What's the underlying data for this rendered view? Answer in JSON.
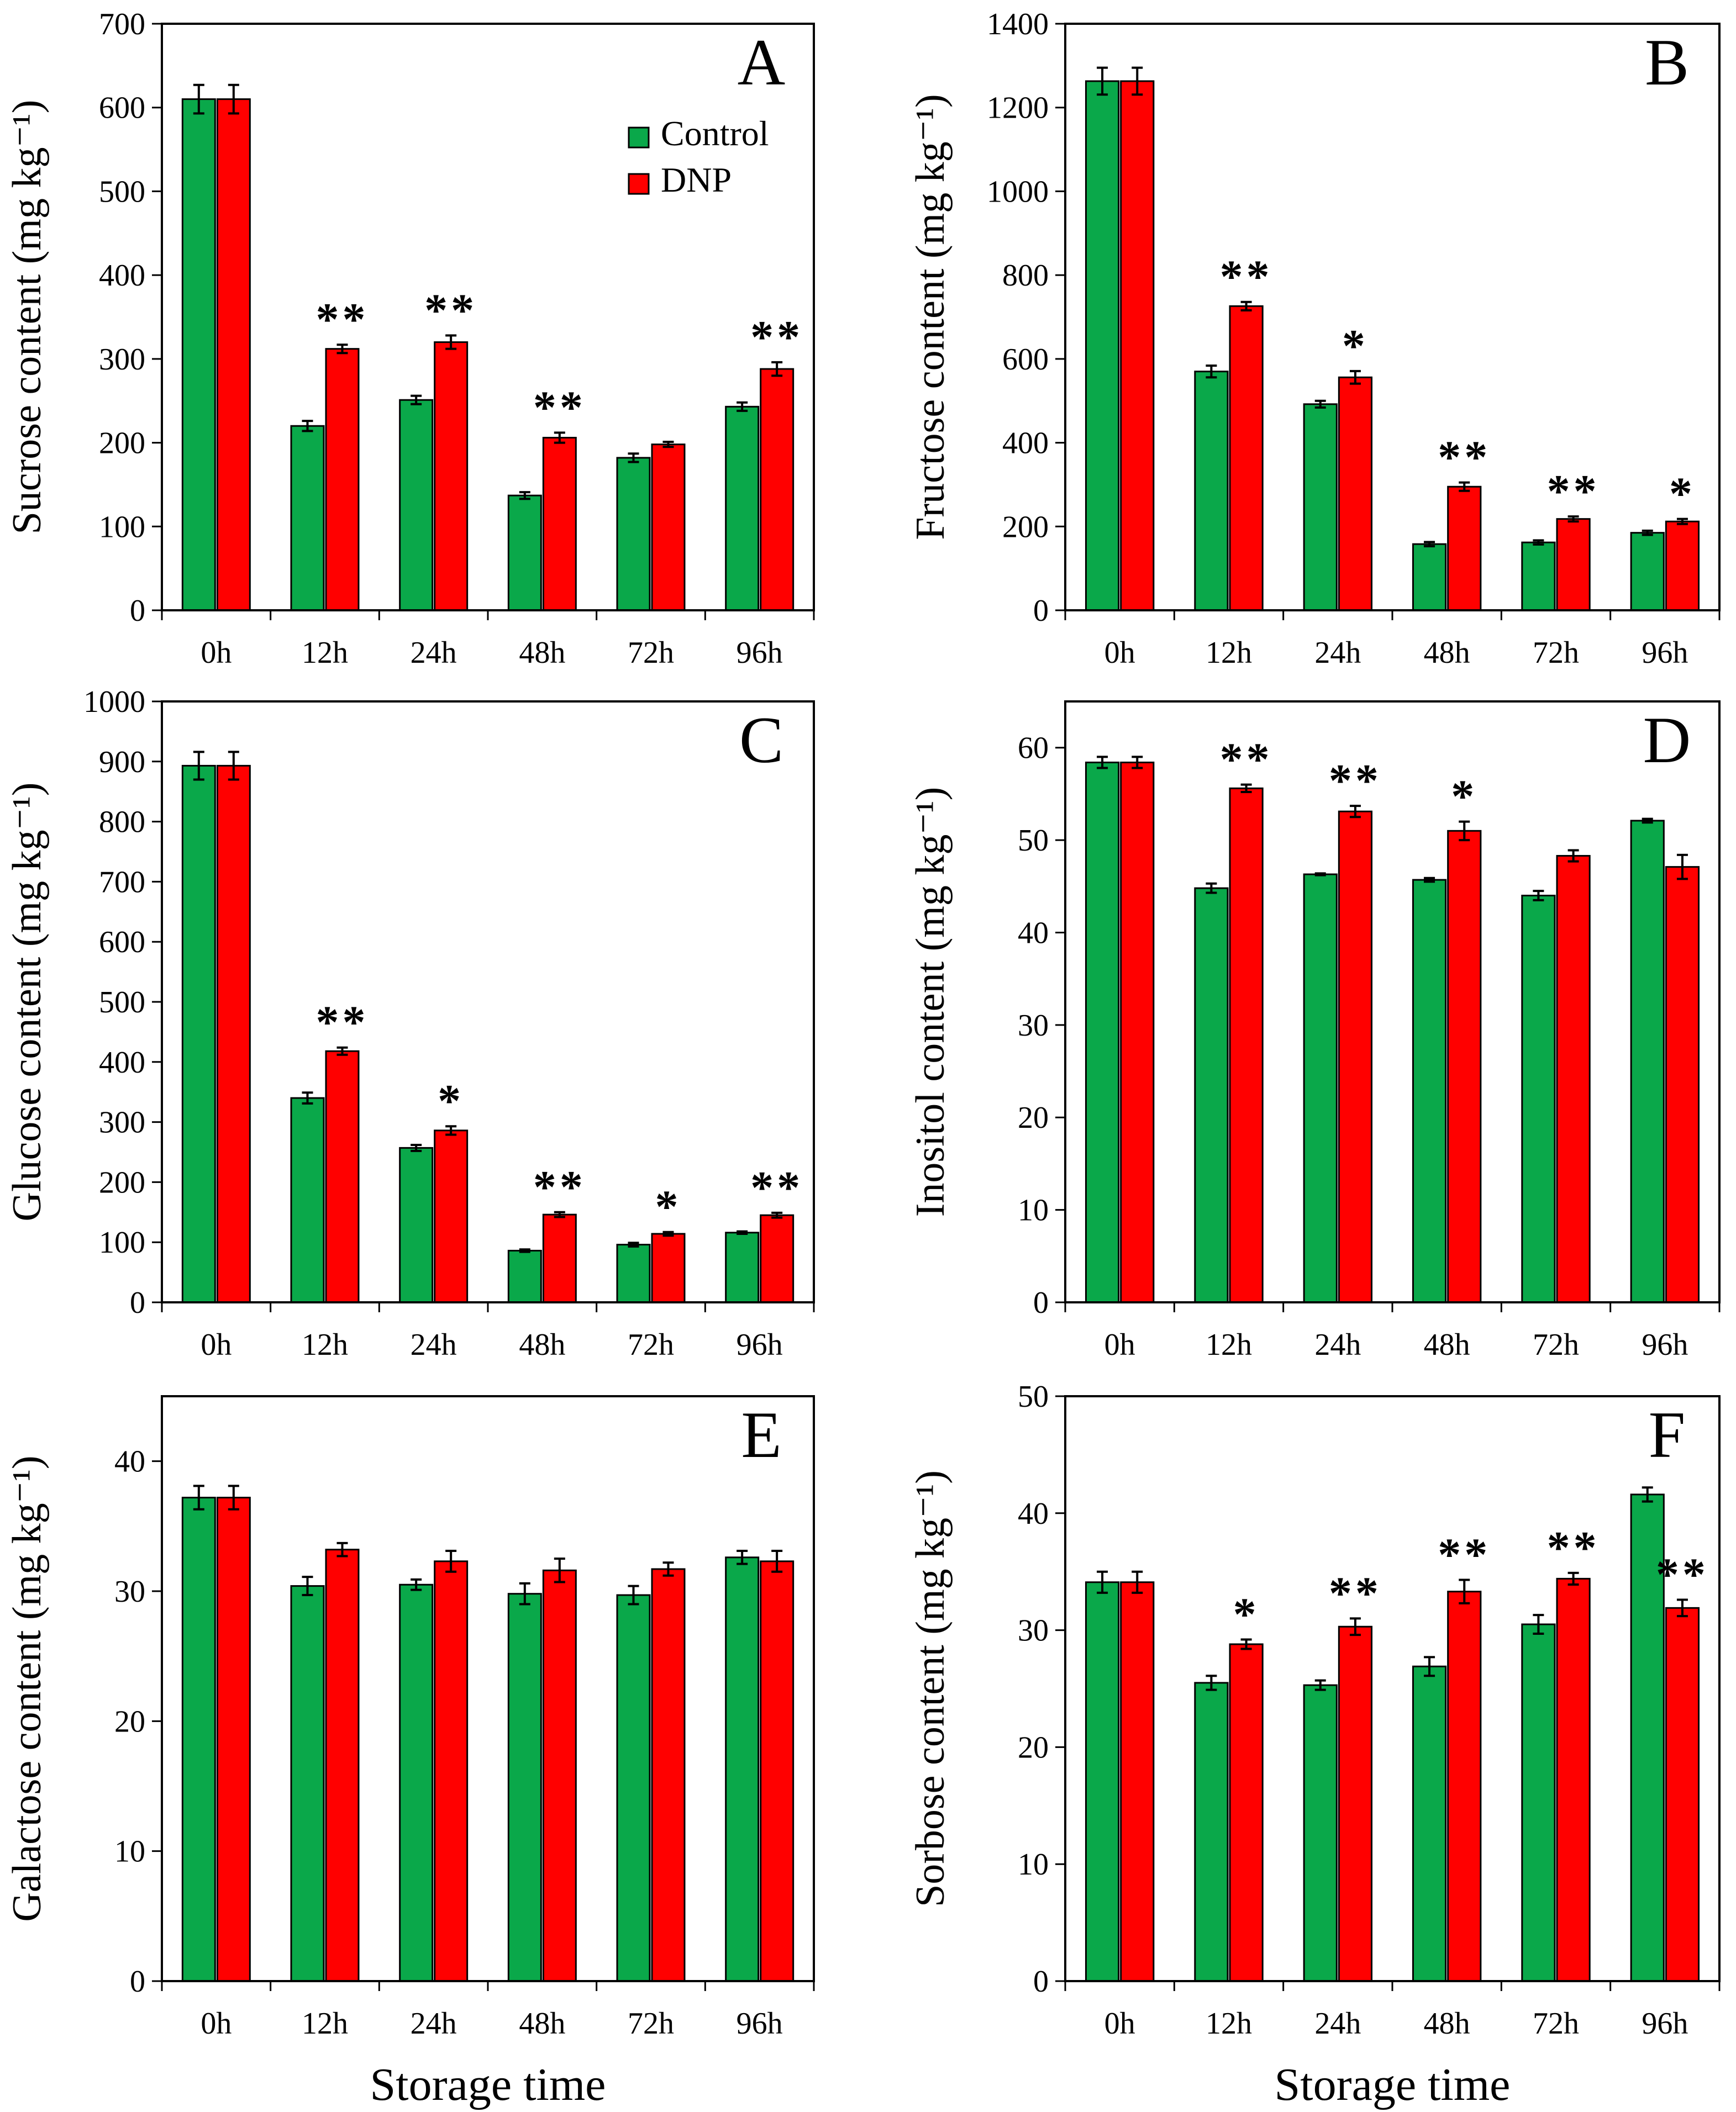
{
  "figure": {
    "xlabel": "Storage time",
    "legend": {
      "control": "Control",
      "dnp": "DNP"
    }
  },
  "colors": {
    "control": "#0aa84a",
    "dnp": "#ff0000",
    "axis": "#000000"
  },
  "chart_data": [
    {
      "type": "bar",
      "letter": "A",
      "title": "",
      "categories": [
        "0h",
        "12h",
        "24h",
        "48h",
        "72h",
        "96h"
      ],
      "ylabel": "Sucrose content (mg kg⁻¹)",
      "ylim": [
        0,
        700
      ],
      "yticks": [
        0,
        100,
        200,
        300,
        400,
        500,
        600,
        700
      ],
      "series": [
        {
          "name": "Control",
          "values": [
            610,
            220,
            251,
            137,
            182,
            243
          ],
          "errors": [
            17,
            6,
            5,
            4,
            5,
            5
          ]
        },
        {
          "name": "DNP",
          "values": [
            610,
            312,
            320,
            206,
            198,
            288
          ],
          "errors": [
            17,
            5,
            8,
            6,
            3,
            8
          ]
        }
      ],
      "significance": [
        "",
        "**",
        "**",
        "**",
        "",
        "**"
      ],
      "show_xlabel": false,
      "legend": true
    },
    {
      "type": "bar",
      "letter": "B",
      "title": "",
      "categories": [
        "0h",
        "12h",
        "24h",
        "48h",
        "72h",
        "96h"
      ],
      "ylabel": "Fructose content (mg kg⁻¹)",
      "ylim": [
        0,
        1400
      ],
      "yticks": [
        0,
        200,
        400,
        600,
        800,
        1000,
        1200,
        1400
      ],
      "series": [
        {
          "name": "Control",
          "values": [
            1263,
            570,
            492,
            158,
            162,
            185
          ],
          "errors": [
            32,
            14,
            8,
            5,
            5,
            5
          ]
        },
        {
          "name": "DNP",
          "values": [
            1263,
            726,
            556,
            295,
            218,
            212
          ],
          "errors": [
            32,
            10,
            15,
            10,
            6,
            6
          ]
        }
      ],
      "significance": [
        "",
        "**",
        "*",
        "**",
        "**",
        "*"
      ],
      "show_xlabel": false,
      "legend": false
    },
    {
      "type": "bar",
      "letter": "C",
      "title": "",
      "categories": [
        "0h",
        "12h",
        "24h",
        "48h",
        "72h",
        "96h"
      ],
      "ylabel": "Glucose content (mg kg⁻¹)",
      "ylim": [
        0,
        1000
      ],
      "yticks": [
        0,
        100,
        200,
        300,
        400,
        500,
        600,
        700,
        800,
        900,
        1000
      ],
      "series": [
        {
          "name": "Control",
          "values": [
            893,
            340,
            257,
            86,
            96,
            116
          ],
          "errors": [
            23,
            9,
            5,
            2,
            3,
            2
          ]
        },
        {
          "name": "DNP",
          "values": [
            893,
            418,
            286,
            146,
            114,
            145
          ],
          "errors": [
            23,
            6,
            7,
            4,
            3,
            4
          ]
        }
      ],
      "significance": [
        "",
        "**",
        "*",
        "**",
        "*",
        "**"
      ],
      "show_xlabel": false,
      "legend": false
    },
    {
      "type": "bar",
      "letter": "D",
      "title": "",
      "categories": [
        "0h",
        "12h",
        "24h",
        "48h",
        "72h",
        "96h"
      ],
      "ylabel": "Inositol content (mg kg⁻¹)",
      "ylim": [
        0,
        65
      ],
      "yticks": [
        0,
        10,
        20,
        30,
        40,
        50,
        60
      ],
      "series": [
        {
          "name": "Control",
          "values": [
            58.4,
            44.8,
            46.3,
            45.7,
            44.0,
            52.1
          ],
          "errors": [
            0.6,
            0.5,
            0.1,
            0.2,
            0.5,
            0.2
          ]
        },
        {
          "name": "DNP",
          "values": [
            58.4,
            55.6,
            53.1,
            51.0,
            48.3,
            47.1
          ],
          "errors": [
            0.6,
            0.4,
            0.6,
            1.0,
            0.6,
            1.3
          ]
        }
      ],
      "significance": [
        "",
        "**",
        "**",
        "*",
        "",
        ""
      ],
      "show_xlabel": false,
      "legend": false
    },
    {
      "type": "bar",
      "letter": "E",
      "title": "",
      "categories": [
        "0h",
        "12h",
        "24h",
        "48h",
        "72h",
        "96h"
      ],
      "ylabel": "Galactose content (mg kg⁻¹)",
      "ylim": [
        0,
        45
      ],
      "yticks": [
        0,
        10,
        20,
        30,
        40
      ],
      "series": [
        {
          "name": "Control",
          "values": [
            37.2,
            30.4,
            30.5,
            29.8,
            29.7,
            32.6
          ],
          "errors": [
            0.9,
            0.7,
            0.4,
            0.8,
            0.7,
            0.5
          ]
        },
        {
          "name": "DNP",
          "values": [
            37.2,
            33.2,
            32.3,
            31.6,
            31.7,
            32.3
          ],
          "errors": [
            0.9,
            0.5,
            0.8,
            0.9,
            0.5,
            0.8
          ]
        }
      ],
      "significance": [
        "",
        "",
        "",
        "",
        "",
        ""
      ],
      "show_xlabel": true,
      "legend": false
    },
    {
      "type": "bar",
      "letter": "F",
      "title": "",
      "categories": [
        "0h",
        "12h",
        "24h",
        "48h",
        "72h",
        "96h"
      ],
      "ylabel": "Sorbose content (mg kg⁻¹)",
      "ylim": [
        0,
        50
      ],
      "yticks": [
        0,
        10,
        20,
        30,
        40,
        50
      ],
      "series": [
        {
          "name": "Control",
          "values": [
            34.1,
            25.5,
            25.3,
            26.9,
            30.5,
            41.6
          ],
          "errors": [
            0.9,
            0.6,
            0.4,
            0.8,
            0.8,
            0.6
          ]
        },
        {
          "name": "DNP",
          "values": [
            34.1,
            28.8,
            30.3,
            33.3,
            34.4,
            31.9
          ],
          "errors": [
            0.9,
            0.4,
            0.7,
            1.0,
            0.5,
            0.7
          ]
        }
      ],
      "significance": [
        "",
        "*",
        "**",
        "**",
        "**",
        "**"
      ],
      "show_xlabel": true,
      "legend": false
    }
  ]
}
